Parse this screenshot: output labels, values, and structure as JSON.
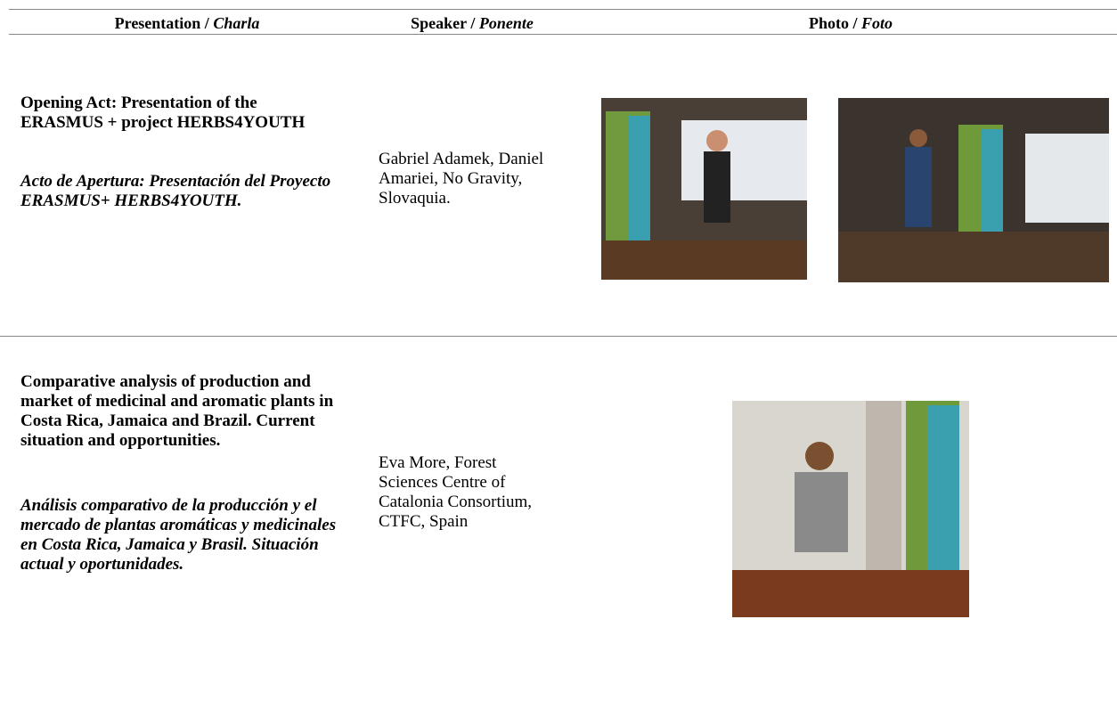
{
  "header": {
    "presentation": {
      "text": "Presentation /",
      "italic": "Charla"
    },
    "speaker": {
      "text": "Speaker /",
      "italic": "Ponente"
    },
    "photo": {
      "text": "Photo /",
      "italic": "Foto"
    }
  },
  "rows": [
    {
      "title": "Opening Act: Presentation of the ERASMUS + project HERBS4YOUTH",
      "title_es": "Acto de Apertura: Presentación del Proyecto ERASMUS+ HERBS4YOUTH.",
      "speaker": "Gabriel Adamek, Daniel Amariei, No Gravity, Slovaquia."
    },
    {
      "title": "Comparative analysis of production and market of medicinal and aromatic plants in Costa Rica, Jamaica and Brazil. Current situation and opportunities.",
      "title_es": "Análisis comparativo de la producción y el mercado de plantas aromáticas y medicinales en Costa Rica, Jamaica y Brasil. Situación actual y oportunidades.",
      "speaker": "Eva More, Forest Sciences Centre of Catalonia Consortium, CTFC, Spain"
    }
  ]
}
